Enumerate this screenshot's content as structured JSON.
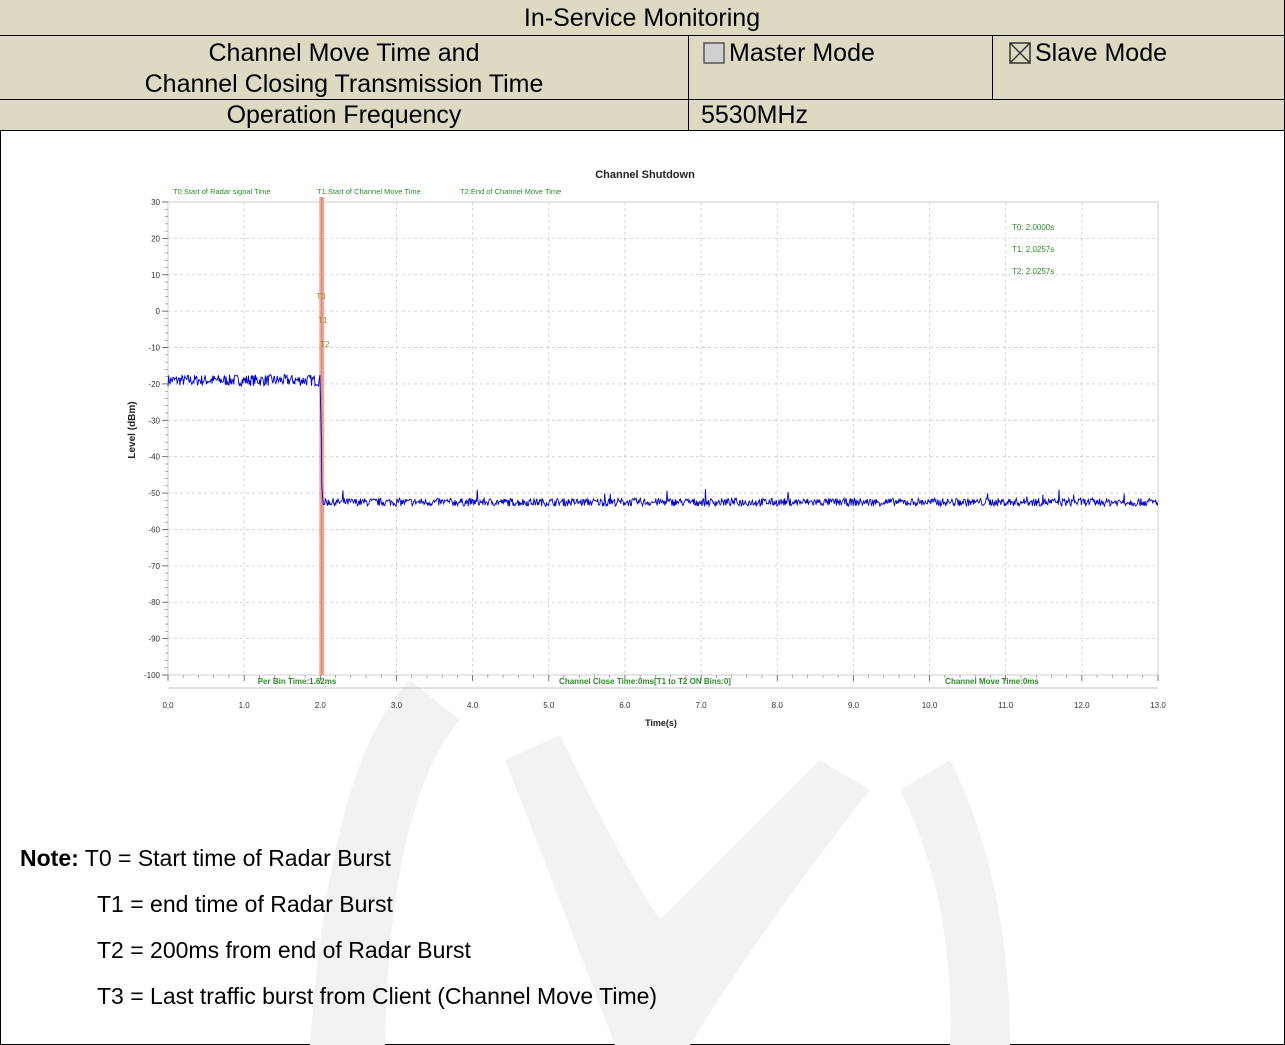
{
  "header": {
    "title": "In-Service Monitoring",
    "test_item_line1": "Channel Move Time and",
    "test_item_line2": "Channel Closing Transmission Time",
    "master_mode_label": "Master Mode",
    "master_mode_checked": false,
    "slave_mode_label": "Slave Mode",
    "slave_mode_checked": true,
    "freq_label": "Operation Frequency",
    "freq_value": "5530MHz"
  },
  "chart_data": {
    "type": "line",
    "title": "Channel Shutdown",
    "xlabel": "Time(s)",
    "ylabel": "Level (dBm)",
    "xlim": [
      0,
      13
    ],
    "ylim": [
      -100,
      30
    ],
    "grid": true,
    "x_ticks": [
      "0.0",
      "1.0",
      "2.0",
      "3.0",
      "4.0",
      "5.0",
      "6.0",
      "7.0",
      "8.0",
      "9.0",
      "10.0",
      "11.0",
      "12.0",
      "13.0"
    ],
    "y_ticks": [
      "30",
      "20",
      "10",
      "0",
      "-10",
      "-20",
      "-30",
      "-40",
      "-50",
      "-60",
      "-70",
      "-80",
      "-90",
      "-100"
    ],
    "top_labels": [
      "T0:Start of Radar signal Time",
      "T1:Start of Channel Move Time",
      "T2:End of Channel Move Time"
    ],
    "marker_labels": [
      "T0",
      "T1",
      "T2"
    ],
    "readouts": [
      "T0: 2.0000s",
      "T1: 2.0257s",
      "T2: 2.0257s"
    ],
    "bottom_labels": [
      "Per Bin Time:1.62ms",
      "Channel Close Time:0ms[T1 to T2 ON Bins:0]",
      "Channel Move Time:0ms"
    ],
    "markers": {
      "T0": 2.0,
      "T1": 2.0257,
      "T2": 2.0257
    },
    "series": [
      {
        "segments": [
          {
            "x_start": 0.0,
            "x_end": 2.0,
            "level": -19
          },
          {
            "x_start": 2.0257,
            "x_end": 13.0,
            "level": -52.5
          }
        ],
        "color": "#0000cc"
      }
    ],
    "label_color": "#2e8b2e",
    "marker_color": "#e8a090"
  },
  "notes": {
    "prefix": "Note:",
    "t0": "T0 = Start time of Radar Burst",
    "t1": "T1 = end time of Radar Burst",
    "t2": "T2 = 200ms from end of Radar Burst",
    "t3": "T3 = Last traffic burst from Client (Channel Move Time)"
  }
}
